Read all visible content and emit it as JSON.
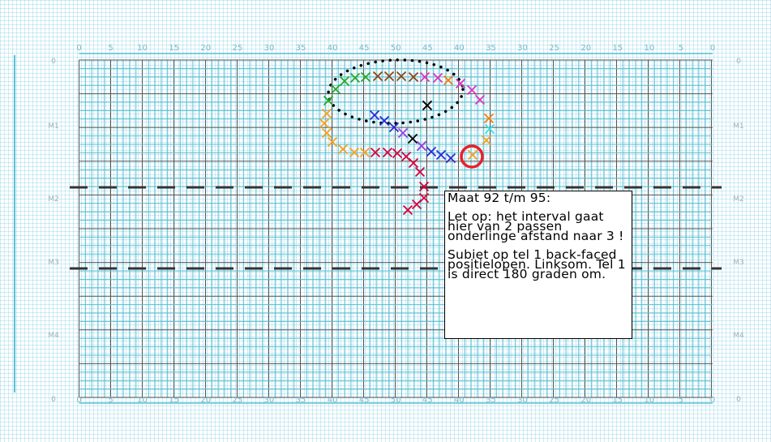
{
  "grid": {
    "top_numbers": [
      "0",
      "5",
      "10",
      "15",
      "20",
      "25",
      "30",
      "35",
      "40",
      "45",
      "50",
      "45",
      "40",
      "35",
      "30",
      "25",
      "20",
      "15",
      "10",
      "5",
      "0"
    ],
    "bottom_numbers": [
      "0",
      "5",
      "10",
      "15",
      "20",
      "25",
      "30",
      "35",
      "40",
      "45",
      "50",
      "45",
      "40",
      "35",
      "30",
      "25",
      "20",
      "15",
      "10",
      "5",
      "0"
    ],
    "left_markers": [
      "0",
      "M1",
      "M2",
      "M3",
      "M4",
      "0"
    ],
    "right_markers": [
      "0",
      "M1",
      "M2",
      "M3",
      "M4",
      "0"
    ]
  },
  "note": {
    "title": "Maat 92 t/m 95:",
    "paragraph1": "Let op: het interval gaat hier van 2 passen onderlinge afstand naar 3 !",
    "paragraph2": "Subiet op tel 1 back-faced positielopen. Linksom. Tel 1 is direct 180 graden om."
  },
  "colors": {
    "grid_dark": "#555555",
    "grid_light": "#5bc0d4",
    "highlight_circle": "#e8202a",
    "dashed_lines": "#333333"
  },
  "markers": [
    {
      "color": "#d8003a",
      "count": 9
    },
    {
      "color": "#2a2ad6",
      "count": 8
    },
    {
      "color": "#f4a020",
      "count": 8
    },
    {
      "color": "#22aa22",
      "count": 4
    },
    {
      "color": "#8b4513",
      "count": 5
    },
    {
      "color": "#e030c0",
      "count": 4
    },
    {
      "color": "#ff7a00",
      "count": 2
    },
    {
      "color": "#33e0e0",
      "count": 1
    },
    {
      "color": "#a040e0",
      "count": 2
    },
    {
      "color": "#000000",
      "count": 2
    }
  ]
}
